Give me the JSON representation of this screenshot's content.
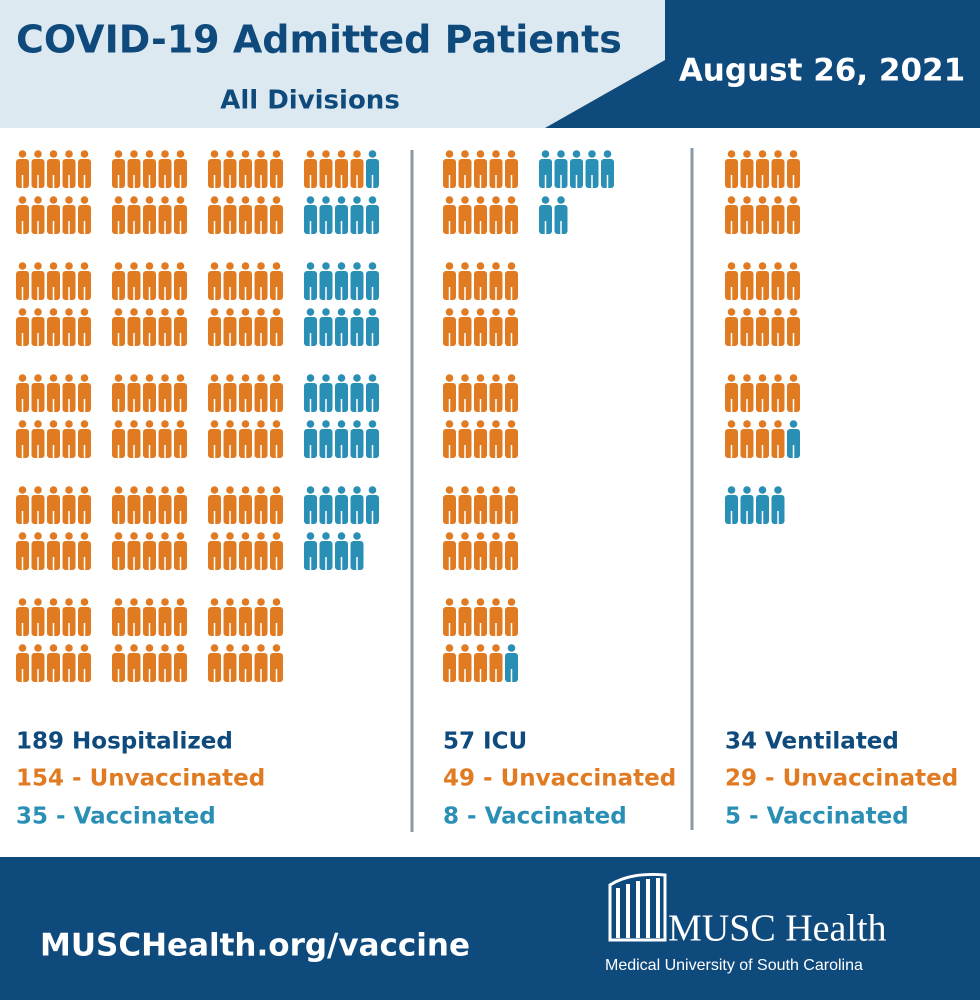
{
  "header": {
    "title": "COVID-19 Admitted Patients",
    "subtitle": "All Divisions",
    "date": "August 26, 2021"
  },
  "chart_data": [
    {
      "type": "pictogram",
      "title": "189 Hospitalized",
      "series": [
        {
          "label": "154 - Unvaccinated",
          "color": "#e07b22",
          "values": [
            154
          ]
        },
        {
          "label": "35 - Vaccinated",
          "color": "#2a8fb5",
          "values": [
            35
          ]
        }
      ]
    },
    {
      "type": "pictogram",
      "title": "57 ICU",
      "series": [
        {
          "label": "49 - Unvaccinated",
          "color": "#e07b22",
          "values": [
            49
          ]
        },
        {
          "label": "8 - Vaccinated",
          "color": "#2a8fb5",
          "values": [
            8
          ]
        }
      ]
    },
    {
      "type": "pictogram",
      "title": "34 Ventilated",
      "series": [
        {
          "label": "29 - Unvaccinated",
          "color": "#e07b22",
          "values": [
            29
          ]
        },
        {
          "label": "5 - Vaccinated",
          "color": "#2a8fb5",
          "values": [
            5
          ]
        }
      ]
    }
  ],
  "footer": {
    "url": "MUSCHealth.org/vaccine",
    "logo_name": "MUSC Health",
    "logo_subtitle": "Medical University of South Carolina"
  }
}
